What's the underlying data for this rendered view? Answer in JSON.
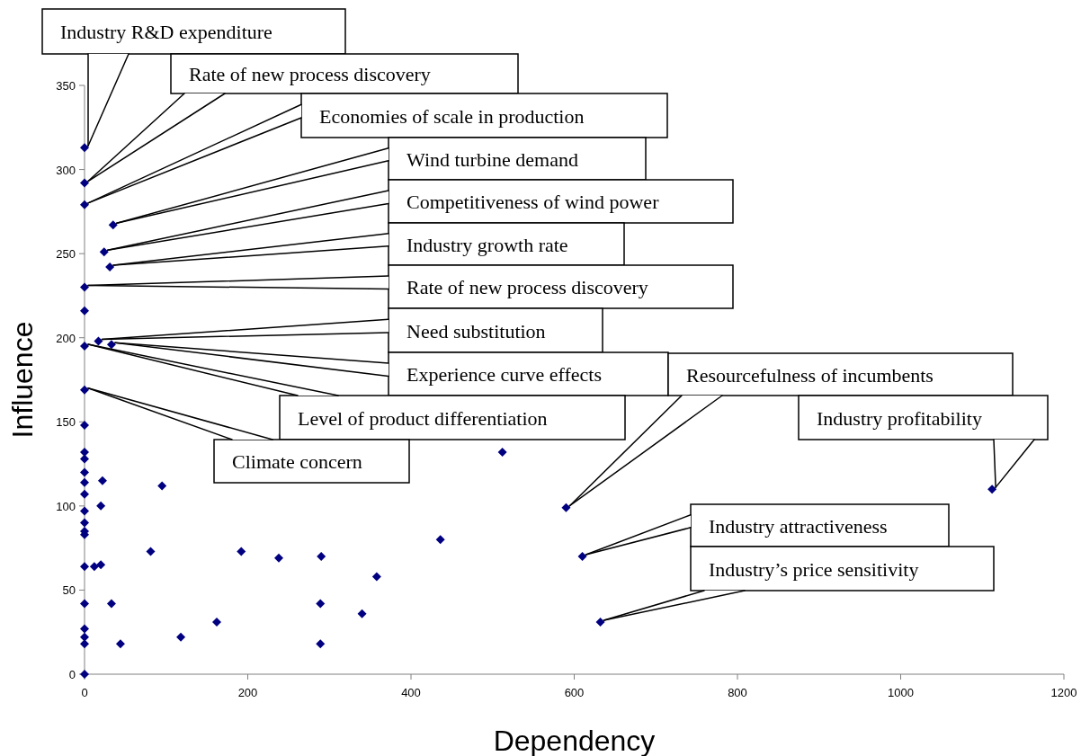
{
  "chart_data": {
    "type": "scatter",
    "xlabel": "Dependency",
    "ylabel": "Influence",
    "xlim": [
      0,
      1200
    ],
    "ylim": [
      0,
      350
    ],
    "xticks": [
      0,
      200,
      400,
      600,
      800,
      1000,
      1200
    ],
    "yticks": [
      0,
      50,
      100,
      150,
      200,
      250,
      300,
      350
    ],
    "marker": "diamond",
    "series": [
      {
        "color": "#000080",
        "x": [
          0,
          0,
          0,
          0,
          0,
          0,
          0,
          0,
          0,
          0,
          0,
          0,
          0,
          0,
          0,
          0,
          0,
          0,
          0,
          0,
          0,
          0,
          0,
          35,
          24,
          31,
          17,
          33,
          22,
          20,
          95,
          81,
          12,
          20,
          33,
          44,
          118,
          162,
          192,
          238,
          290,
          289,
          289,
          340,
          358,
          436,
          512,
          590,
          610,
          632,
          1112
        ],
        "values": [
          313,
          292,
          279,
          230,
          216,
          195,
          169,
          148,
          132,
          128,
          120,
          114,
          107,
          97,
          90,
          85,
          83,
          64,
          42,
          27,
          22,
          18,
          0,
          267,
          251,
          242,
          198,
          196,
          115,
          100,
          112,
          73,
          64,
          65,
          42,
          18,
          22,
          31,
          73,
          69,
          70,
          42,
          18,
          36,
          58,
          80,
          132,
          99,
          70,
          31,
          110
        ]
      }
    ],
    "annotations": [
      {
        "text": "Industry R&D expenditure",
        "x": 0,
        "y": 313
      },
      {
        "text": "Rate of new process discovery",
        "x": 0,
        "y": 292
      },
      {
        "text": "Economies of scale in production",
        "x": 0,
        "y": 279
      },
      {
        "text": "Wind turbine demand",
        "x": 35,
        "y": 267
      },
      {
        "text": "Competitiveness of wind power",
        "x": 24,
        "y": 251
      },
      {
        "text": "Industry growth rate",
        "x": 31,
        "y": 242
      },
      {
        "text": "Rate of new process discovery",
        "x": 0,
        "y": 230
      },
      {
        "text": "Need substitution",
        "x": 17,
        "y": 198
      },
      {
        "text": "Experience curve effects",
        "x": 33,
        "y": 196
      },
      {
        "text": "Level of product differentiation",
        "x": 0,
        "y": 195
      },
      {
        "text": "Climate concern",
        "x": 0,
        "y": 169
      },
      {
        "text": "Resourcefulness of incumbents",
        "x": 590,
        "y": 99
      },
      {
        "text": "Industry profitability",
        "x": 1112,
        "y": 110
      },
      {
        "text": "Industry attractiveness",
        "x": 610,
        "y": 70
      },
      {
        "text": "Industry’s price sensitivity",
        "x": 632,
        "y": 31
      }
    ]
  }
}
